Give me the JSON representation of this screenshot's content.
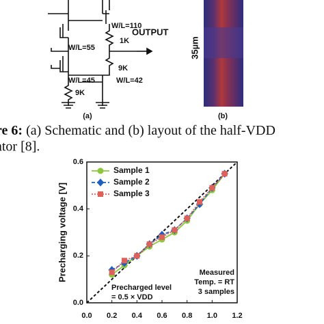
{
  "schematic": {
    "wl_110": "W/L=110",
    "r_1k": "1K",
    "wl_55": "W/L=55",
    "output": "OUTPUT",
    "wl_45": "W/L=45",
    "r_9k_top": "9K",
    "wl_42": "W/L=42",
    "r_9k_bottom": "9K",
    "panel_a": "(a)"
  },
  "layout": {
    "scale": "35µm",
    "panel_b": "(b)"
  },
  "caption": {
    "label": "re 6:",
    "line1": " (a) Schematic and (b) layout of the half-VDD",
    "line2": "ator [8]."
  },
  "chart_data": {
    "type": "line",
    "y_label": "Precharging voltage [V]",
    "x": [
      0.2,
      0.3,
      0.4,
      0.5,
      0.6,
      0.7,
      0.8,
      0.9,
      1.0,
      1.1
    ],
    "series": [
      {
        "name": "Sample 1",
        "color": "#8cc63f",
        "marker": "circle",
        "dash": "solid",
        "values": [
          0.12,
          0.16,
          0.2,
          0.24,
          0.27,
          0.3,
          0.35,
          0.42,
          0.48,
          0.55
        ]
      },
      {
        "name": "Sample 2",
        "color": "#1f5fbf",
        "marker": "diamond",
        "dash": "dashed",
        "values": [
          0.14,
          0.17,
          0.2,
          0.25,
          0.29,
          0.31,
          0.36,
          0.42,
          0.49,
          0.55
        ]
      },
      {
        "name": "Sample 3",
        "color": "#e0605a",
        "marker": "square",
        "dash": "dotted",
        "values": [
          0.13,
          0.18,
          0.2,
          0.25,
          0.28,
          0.31,
          0.36,
          0.43,
          0.49,
          0.55
        ]
      }
    ],
    "xlim": [
      0,
      1.2
    ],
    "ylim": [
      0,
      0.6
    ],
    "xticks": [
      {
        "value": 0,
        "label": "0.0"
      },
      0.2,
      0.4,
      0.6,
      0.8,
      {
        "value": 1,
        "label": "1.0"
      },
      1.2
    ],
    "yticks": [
      {
        "value": 0,
        "label": "0.0"
      },
      0.2,
      0.4,
      0.6
    ],
    "annotations": [
      "Precharged level",
      "= 0.5 × VDD",
      "Measured",
      "Temp. = RT",
      "3 samples"
    ]
  }
}
